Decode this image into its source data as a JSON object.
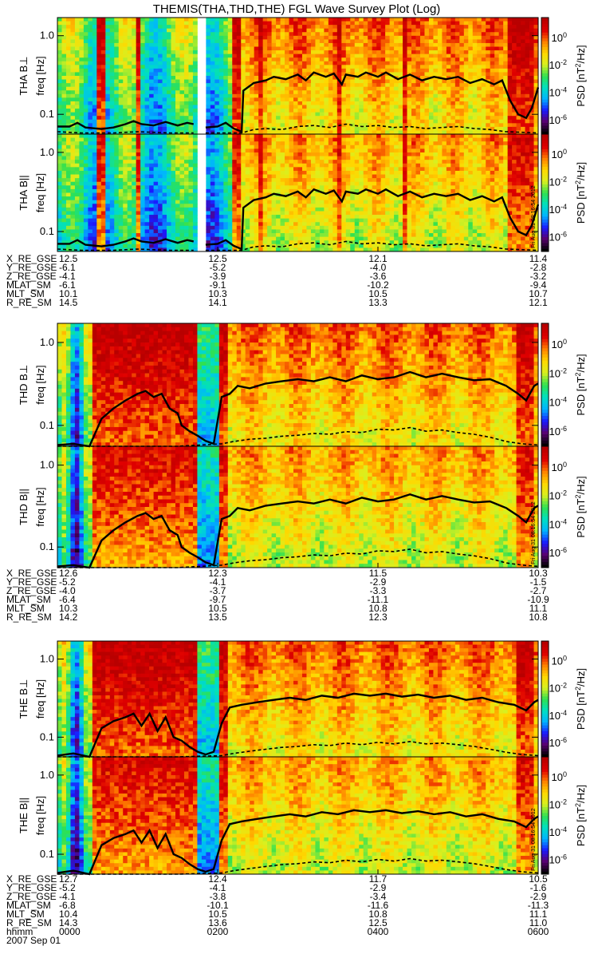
{
  "chart_data": {
    "type": "heatmap",
    "title": "THEMIS(THA,THD,THE) FGL Wave Survey Plot (Log)",
    "y_axis": {
      "label": "freq [Hz]",
      "scale": "log",
      "range_hz": [
        0.056,
        1.7
      ],
      "ticks": [
        {
          "value": 0.1,
          "label": "0.1"
        },
        {
          "value": 1.0,
          "label": "1.0"
        }
      ]
    },
    "colorbar": {
      "label": "PSD [nT²/Hz]",
      "label_parts": {
        "prefix": "PSD [nT",
        "sup": "2",
        "suffix": "/Hz]"
      },
      "scale": "log",
      "range_log10": [
        -7,
        1.5
      ],
      "colors": [
        "#000000",
        "#5a0070",
        "#1a1aff",
        "#00b4ff",
        "#00e0c0",
        "#30e050",
        "#d8f020",
        "#ffd800",
        "#ff8000",
        "#e00000",
        "#b80000"
      ],
      "ticks": [
        {
          "exp": "0",
          "value_log10": 0
        },
        {
          "exp": "-2",
          "value_log10": -2
        },
        {
          "exp": "-4",
          "value_log10": -4
        },
        {
          "exp": "-6",
          "value_log10": -6
        }
      ]
    },
    "time_axis": {
      "start_label": "2007 Sep 01",
      "hhmm_label": "hhmm",
      "range_hours": [
        0,
        6
      ],
      "ticks": [
        {
          "hours": 0,
          "label": "0000"
        },
        {
          "hours": 2,
          "label": "0200"
        },
        {
          "hours": 4,
          "label": "0400"
        },
        {
          "hours": 6,
          "label": "0600"
        }
      ]
    },
    "stamp": "Fri Aug 31 08:16:54 2012",
    "probes": [
      {
        "id": "THA",
        "panels": [
          {
            "label": "THA B⊥",
            "component": "perp"
          },
          {
            "label": "THA B||",
            "component": "par"
          }
        ],
        "data_gap_hours": [
          1.72,
          1.83
        ],
        "solid_line_hz": [
          [
            0.0,
            0.07
          ],
          [
            0.15,
            0.07
          ],
          [
            0.25,
            0.078
          ],
          [
            0.35,
            0.068
          ],
          [
            0.55,
            0.065
          ],
          [
            0.7,
            0.068
          ],
          [
            0.85,
            0.075
          ],
          [
            0.95,
            0.082
          ],
          [
            1.05,
            0.075
          ],
          [
            1.2,
            0.072
          ],
          [
            1.35,
            0.08
          ],
          [
            1.5,
            0.072
          ],
          [
            1.62,
            0.078
          ],
          [
            1.7,
            0.075
          ],
          null,
          [
            1.85,
            0.068
          ],
          [
            2.0,
            0.07
          ],
          [
            2.1,
            0.078
          ],
          [
            2.2,
            0.066
          ],
          [
            2.3,
            0.06
          ],
          [
            2.32,
            0.2
          ],
          [
            2.45,
            0.25
          ],
          [
            2.6,
            0.27
          ],
          [
            2.7,
            0.3
          ],
          [
            2.85,
            0.28
          ],
          [
            3.0,
            0.32
          ],
          [
            3.1,
            0.27
          ],
          [
            3.2,
            0.34
          ],
          [
            3.35,
            0.3
          ],
          [
            3.45,
            0.33
          ],
          [
            3.55,
            0.24
          ],
          [
            3.6,
            0.32
          ],
          [
            3.75,
            0.3
          ],
          [
            3.85,
            0.34
          ],
          [
            4.0,
            0.3
          ],
          [
            4.1,
            0.34
          ],
          [
            4.25,
            0.28
          ],
          [
            4.4,
            0.32
          ],
          [
            4.55,
            0.27
          ],
          [
            4.7,
            0.3
          ],
          [
            4.85,
            0.28
          ],
          [
            5.0,
            0.3
          ],
          [
            5.15,
            0.25
          ],
          [
            5.3,
            0.28
          ],
          [
            5.45,
            0.24
          ],
          [
            5.55,
            0.27
          ],
          [
            5.65,
            0.15
          ],
          [
            5.75,
            0.1
          ],
          [
            5.85,
            0.09
          ],
          [
            5.92,
            0.12
          ],
          [
            6.0,
            0.22
          ]
        ],
        "dashed_line_hz": [
          [
            0.0,
            0.06
          ],
          [
            0.3,
            0.058
          ],
          [
            0.7,
            0.058
          ],
          [
            1.0,
            0.06
          ],
          [
            1.4,
            0.058
          ],
          [
            1.7,
            0.058
          ],
          null,
          [
            1.85,
            0.058
          ],
          [
            2.3,
            0.058
          ],
          [
            2.45,
            0.064
          ],
          [
            2.6,
            0.066
          ],
          [
            2.8,
            0.064
          ],
          [
            3.0,
            0.07
          ],
          [
            3.2,
            0.072
          ],
          [
            3.4,
            0.068
          ],
          [
            3.6,
            0.075
          ],
          [
            3.8,
            0.07
          ],
          [
            4.0,
            0.072
          ],
          [
            4.2,
            0.068
          ],
          [
            4.4,
            0.07
          ],
          [
            4.6,
            0.066
          ],
          [
            4.8,
            0.068
          ],
          [
            5.0,
            0.07
          ],
          [
            5.2,
            0.066
          ],
          [
            5.4,
            0.064
          ],
          [
            5.6,
            0.06
          ],
          [
            6.0,
            0.058
          ]
        ],
        "ephemeris": {
          "labels": [
            "X_RE_GSE",
            "Y_RE_GSE",
            "Z_RE_GSE",
            "MLAT_SM",
            "MLT_SM",
            "R_RE_SM"
          ],
          "values": [
            [
              "12.5",
              "12.5",
              "12.1",
              "11.4"
            ],
            [
              "-6.1",
              "-5.2",
              "-4.0",
              "-2.8"
            ],
            [
              "-4.1",
              "-3.9",
              "-3.6",
              "-3.2"
            ],
            [
              "-6.1",
              "-9.1",
              "-10.2",
              "-9.4"
            ],
            [
              "10.1",
              "10.3",
              "10.5",
              "10.7"
            ],
            [
              "14.5",
              "14.1",
              "13.3",
              "12.1"
            ]
          ]
        }
      },
      {
        "id": "THD",
        "panels": [
          {
            "label": "THD B⊥",
            "component": "perp"
          },
          {
            "label": "THD B||",
            "component": "par"
          }
        ],
        "data_gap_hours": null,
        "solid_line_hz": [
          [
            0.0,
            0.058
          ],
          [
            0.2,
            0.06
          ],
          [
            0.4,
            0.056
          ],
          [
            0.55,
            0.12
          ],
          [
            0.7,
            0.16
          ],
          [
            0.85,
            0.2
          ],
          [
            1.0,
            0.24
          ],
          [
            1.1,
            0.26
          ],
          [
            1.2,
            0.22
          ],
          [
            1.3,
            0.24
          ],
          [
            1.4,
            0.16
          ],
          [
            1.5,
            0.14
          ],
          [
            1.55,
            0.1
          ],
          [
            1.65,
            0.085
          ],
          [
            1.75,
            0.075
          ],
          [
            1.85,
            0.065
          ],
          [
            1.95,
            0.06
          ],
          [
            2.05,
            0.22
          ],
          [
            2.15,
            0.24
          ],
          [
            2.25,
            0.3
          ],
          [
            2.4,
            0.28
          ],
          [
            2.6,
            0.32
          ],
          [
            2.8,
            0.34
          ],
          [
            3.0,
            0.36
          ],
          [
            3.2,
            0.34
          ],
          [
            3.4,
            0.38
          ],
          [
            3.6,
            0.34
          ],
          [
            3.8,
            0.4
          ],
          [
            4.0,
            0.36
          ],
          [
            4.2,
            0.38
          ],
          [
            4.4,
            0.44
          ],
          [
            4.6,
            0.38
          ],
          [
            4.8,
            0.42
          ],
          [
            5.0,
            0.38
          ],
          [
            5.2,
            0.35
          ],
          [
            5.4,
            0.36
          ],
          [
            5.6,
            0.3
          ],
          [
            5.75,
            0.24
          ],
          [
            5.85,
            0.2
          ],
          [
            5.95,
            0.3
          ],
          [
            6.0,
            0.32
          ]
        ],
        "dashed_line_hz": [
          [
            0.0,
            0.056
          ],
          [
            0.5,
            0.056
          ],
          [
            1.0,
            0.056
          ],
          [
            1.5,
            0.056
          ],
          [
            2.05,
            0.06
          ],
          [
            2.2,
            0.064
          ],
          [
            2.4,
            0.068
          ],
          [
            2.6,
            0.07
          ],
          [
            2.8,
            0.074
          ],
          [
            3.0,
            0.076
          ],
          [
            3.2,
            0.08
          ],
          [
            3.4,
            0.078
          ],
          [
            3.6,
            0.084
          ],
          [
            3.8,
            0.082
          ],
          [
            4.0,
            0.09
          ],
          [
            4.2,
            0.088
          ],
          [
            4.4,
            0.094
          ],
          [
            4.6,
            0.085
          ],
          [
            4.8,
            0.088
          ],
          [
            5.0,
            0.082
          ],
          [
            5.2,
            0.078
          ],
          [
            5.4,
            0.072
          ],
          [
            5.6,
            0.064
          ],
          [
            5.8,
            0.06
          ],
          [
            6.0,
            0.058
          ]
        ],
        "ephemeris": {
          "labels": [
            "X_RE_GSE",
            "Y_RE_GSE",
            "Z_RE_GSE",
            "MLAT_SM",
            "MLT_SM",
            "R_RE_SM"
          ],
          "values": [
            [
              "12.6",
              "12.3",
              "11.5",
              "10.3"
            ],
            [
              "-5.2",
              "-4.1",
              "-2.9",
              "-1.5"
            ],
            [
              "-4.0",
              "-3.7",
              "-3.3",
              "-2.7"
            ],
            [
              "-6.4",
              "-9.7",
              "-11.1",
              "-10.9"
            ],
            [
              "10.3",
              "10.5",
              "10.8",
              "11.1"
            ],
            [
              "14.2",
              "13.5",
              "12.3",
              "10.8"
            ]
          ]
        }
      },
      {
        "id": "THE",
        "panels": [
          {
            "label": "THE B⊥",
            "component": "perp"
          },
          {
            "label": "THE B||",
            "component": "par"
          }
        ],
        "data_gap_hours": null,
        "solid_line_hz": [
          [
            0.0,
            0.058
          ],
          [
            0.2,
            0.062
          ],
          [
            0.4,
            0.056
          ],
          [
            0.55,
            0.13
          ],
          [
            0.7,
            0.16
          ],
          [
            0.85,
            0.18
          ],
          [
            0.95,
            0.2
          ],
          [
            1.05,
            0.14
          ],
          [
            1.15,
            0.2
          ],
          [
            1.25,
            0.12
          ],
          [
            1.35,
            0.18
          ],
          [
            1.45,
            0.1
          ],
          [
            1.55,
            0.09
          ],
          [
            1.65,
            0.075
          ],
          [
            1.75,
            0.065
          ],
          [
            1.85,
            0.06
          ],
          [
            1.95,
            0.065
          ],
          [
            2.05,
            0.15
          ],
          [
            2.15,
            0.24
          ],
          [
            2.3,
            0.26
          ],
          [
            2.5,
            0.28
          ],
          [
            2.7,
            0.3
          ],
          [
            2.9,
            0.32
          ],
          [
            3.1,
            0.3
          ],
          [
            3.3,
            0.34
          ],
          [
            3.5,
            0.32
          ],
          [
            3.7,
            0.36
          ],
          [
            3.9,
            0.34
          ],
          [
            4.1,
            0.36
          ],
          [
            4.3,
            0.33
          ],
          [
            4.5,
            0.35
          ],
          [
            4.7,
            0.32
          ],
          [
            4.9,
            0.34
          ],
          [
            5.1,
            0.3
          ],
          [
            5.3,
            0.32
          ],
          [
            5.5,
            0.28
          ],
          [
            5.7,
            0.26
          ],
          [
            5.85,
            0.22
          ],
          [
            5.95,
            0.28
          ],
          [
            6.0,
            0.3
          ]
        ],
        "dashed_line_hz": [
          [
            0.0,
            0.056
          ],
          [
            0.5,
            0.056
          ],
          [
            1.0,
            0.056
          ],
          [
            1.5,
            0.056
          ],
          [
            2.05,
            0.058
          ],
          [
            2.2,
            0.062
          ],
          [
            2.4,
            0.066
          ],
          [
            2.6,
            0.07
          ],
          [
            2.8,
            0.074
          ],
          [
            3.0,
            0.076
          ],
          [
            3.2,
            0.08
          ],
          [
            3.4,
            0.078
          ],
          [
            3.6,
            0.084
          ],
          [
            3.8,
            0.08
          ],
          [
            4.0,
            0.086
          ],
          [
            4.2,
            0.082
          ],
          [
            4.4,
            0.088
          ],
          [
            4.6,
            0.082
          ],
          [
            4.8,
            0.084
          ],
          [
            5.0,
            0.08
          ],
          [
            5.2,
            0.076
          ],
          [
            5.4,
            0.07
          ],
          [
            5.6,
            0.064
          ],
          [
            5.8,
            0.06
          ],
          [
            6.0,
            0.058
          ]
        ],
        "ephemeris": {
          "labels": [
            "X_RE_GSE",
            "Y_RE_GSE",
            "Z_RE_GSE",
            "MLAT_SM",
            "MLT_SM",
            "R_RE_SM"
          ],
          "values": [
            [
              "12.7",
              "12.4",
              "11.7",
              "10.5"
            ],
            [
              "-5.2",
              "-4.1",
              "-2.9",
              "-1.6"
            ],
            [
              "-4.1",
              "-3.8",
              "-3.4",
              "-2.9"
            ],
            [
              "-6.8",
              "-10.1",
              "-11.6",
              "-11.3"
            ],
            [
              "10.4",
              "10.5",
              "10.8",
              "11.1"
            ],
            [
              "14.3",
              "13.6",
              "12.5",
              "11.0"
            ]
          ]
        }
      }
    ]
  }
}
